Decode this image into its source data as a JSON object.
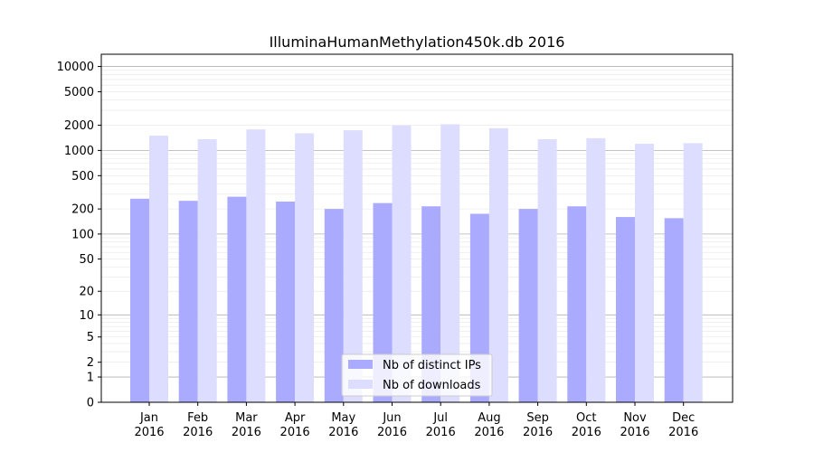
{
  "chart_data": {
    "type": "bar",
    "title": "IlluminaHumanMethylation450k.db 2016",
    "xlabel": "",
    "ylabel": "",
    "yscale": "log(1+y)",
    "ylim": [
      0,
      14000
    ],
    "yticks": [
      0,
      1,
      2,
      5,
      10,
      20,
      50,
      100,
      200,
      500,
      1000,
      2000,
      5000,
      10000
    ],
    "ytick_labels": [
      "0",
      "1",
      "2",
      "5",
      "10",
      "20",
      "50",
      "100",
      "200",
      "500",
      "1000",
      "2000",
      "5000",
      "10000"
    ],
    "categories": [
      "Jan\n2016",
      "Feb\n2016",
      "Mar\n2016",
      "Apr\n2016",
      "May\n2016",
      "Jun\n2016",
      "Jul\n2016",
      "Aug\n2016",
      "Sep\n2016",
      "Oct\n2016",
      "Nov\n2016",
      "Dec\n2016"
    ],
    "series": [
      {
        "name": "Nb of distinct IPs",
        "color": "#aaaaff",
        "values": [
          265,
          250,
          280,
          245,
          200,
          235,
          215,
          175,
          200,
          215,
          160,
          155
        ]
      },
      {
        "name": "Nb of downloads",
        "color": "#ddddff",
        "values": [
          1500,
          1360,
          1780,
          1600,
          1740,
          1980,
          2050,
          1840,
          1360,
          1400,
          1200,
          1220
        ]
      }
    ],
    "grid": true,
    "legend_position": "bottom-center"
  }
}
